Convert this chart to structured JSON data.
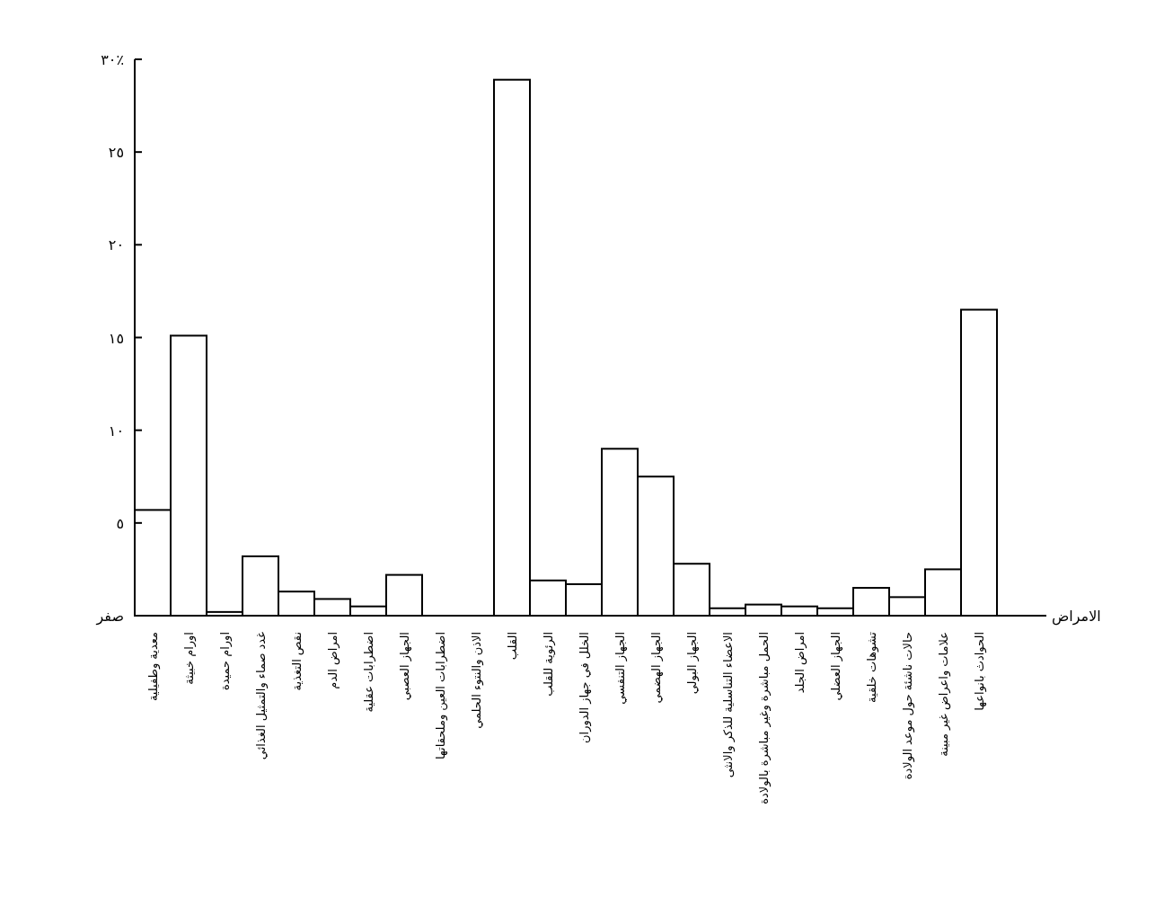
{
  "chart_data": {
    "type": "bar",
    "xlabel": "الامراض",
    "categories": [
      "معدية وطفيلية",
      "اورام خبيثة",
      "اورام حميدة",
      "غدد صماء والتمثيل الغذائي",
      "نقص التغذية",
      "امراض الدم",
      "اضطرابات عقلية",
      "الجهاز العصبي",
      "اضطرابات العين وملحقاتها",
      "الاذن والنتوء الحلمي",
      "القلب",
      "الرئوية للقلب",
      "الخلل في جهاز الدوران",
      "الجهاز التنفسي",
      "الجهاز الهضمي",
      "الجهاز البولي",
      "الاعضاء التناسلية للذكر والانثى",
      "الحمل مباشرة وغير مباشرة بالولادة",
      "امراض الجلد",
      "الجهاز العضلي",
      "تشوهات خلقية",
      "حالات ناشئة حول موعد الولادة",
      "علامات واعراض غير مبينة",
      "الحوادث بانواعها"
    ],
    "values": [
      5.7,
      15.1,
      0.2,
      3.2,
      1.3,
      0.9,
      0.5,
      2.2,
      0,
      0,
      28.9,
      1.9,
      1.7,
      9.0,
      7.5,
      2.8,
      0.4,
      0.6,
      0.5,
      0.4,
      1.5,
      1.0,
      2.5,
      16.5
    ],
    "color": "#000000",
    "ylim": [
      0,
      30
    ],
    "yticks": [
      {
        "value": 0,
        "label": "صفر"
      },
      {
        "value": 5,
        "label": "٥"
      },
      {
        "value": 10,
        "label": "١٠"
      },
      {
        "value": 15,
        "label": "١٥"
      },
      {
        "value": 20,
        "label": "٢٠"
      },
      {
        "value": 25,
        "label": "٢٥"
      },
      {
        "value": 30,
        "label": "٣٠٪"
      }
    ],
    "grid": false
  }
}
